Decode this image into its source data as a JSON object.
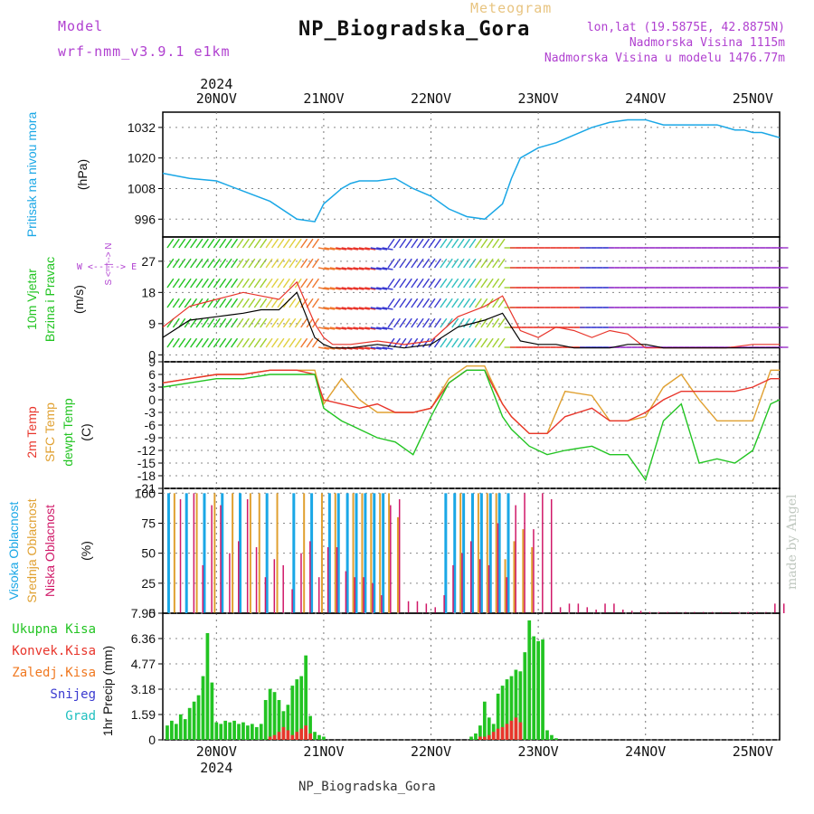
{
  "header": {
    "model_label": "Model",
    "model_name": "wrf-nmm_v3.9.1 e1km",
    "meteogram_label": "Meteogram",
    "station_title": "NP_Biogradska_Gora",
    "coords": "lon,lat (19.5875E, 42.8875N)",
    "altitude": "Nadmorska Visina 1115m",
    "model_altitude": "Nadmorska Visina u modelu 1476.77m",
    "footer_station": "NP_Biogradska_Gora",
    "credit": "made by Angel"
  },
  "colors": {
    "pressure": "#1aa7e6",
    "wind_speed": "#000000",
    "wind_gust": "#e8352b",
    "temp_2m": "#e8352b",
    "temp_sfc": "#e0a030",
    "dewpoint": "#22c422",
    "cloud_high": "#1aa7e6",
    "cloud_mid": "#e0a030",
    "cloud_low": "#d01868",
    "precip_total": "#22c422",
    "precip_conv": "#e8352b",
    "precip_frozen": "#f07820",
    "snow": "#3a3ad0",
    "hail": "#20c0c0",
    "axis_purple": "#b040d0"
  },
  "chart_data": [
    {
      "type": "line",
      "panel": "pressure",
      "ylabel_1": "Pritisak na nivou mora",
      "ylabel_2": "(hPa)",
      "yticks": [
        996,
        1008,
        1020,
        1032
      ],
      "ylim": [
        989,
        1038
      ],
      "x_hours": [
        0,
        6,
        12,
        18,
        24,
        30,
        34,
        36,
        38,
        40,
        42,
        44,
        48,
        52,
        54,
        56,
        60,
        64,
        68,
        72,
        76,
        78,
        80,
        84,
        88,
        92,
        96,
        100,
        104,
        108,
        112,
        116,
        120,
        124,
        126,
        128,
        130,
        132,
        134,
        136,
        138
      ],
      "values": [
        1014,
        1012,
        1011,
        1007,
        1003,
        996,
        995,
        1002,
        1005,
        1008,
        1010,
        1011,
        1011,
        1012,
        1010,
        1008,
        1005,
        1000,
        997,
        996,
        1002,
        1012,
        1020,
        1024,
        1026,
        1029,
        1032,
        1034,
        1035,
        1035,
        1033,
        1033,
        1033,
        1033,
        1032,
        1031,
        1031,
        1030,
        1030,
        1029,
        1028
      ]
    },
    {
      "type": "line",
      "panel": "wind",
      "ylabel_1": "10m Vjetar",
      "ylabel_2": "Brzina i Pravac",
      "ylabel_3": "(m/s)",
      "direction_legend": "W <--|--> E",
      "direction_legend_v": "S <--|--> N",
      "yticks": [
        0,
        9,
        18,
        27
      ],
      "ylim": [
        -2,
        34
      ],
      "x_hours": [
        0,
        6,
        12,
        18,
        22,
        26,
        30,
        34,
        36,
        38,
        42,
        48,
        54,
        60,
        66,
        72,
        76,
        80,
        84,
        88,
        92,
        96,
        100,
        104,
        108,
        112,
        116,
        120,
        126,
        132,
        138
      ],
      "series": [
        {
          "name": "speed",
          "values": [
            5,
            10,
            11,
            12,
            13,
            13,
            18,
            5,
            3,
            2,
            2,
            3,
            2,
            3,
            8,
            10,
            12,
            4,
            3,
            3,
            2,
            2,
            2,
            3,
            3,
            2,
            2,
            2,
            2,
            2,
            2
          ]
        },
        {
          "name": "gust",
          "values": [
            8,
            14,
            16,
            18,
            17,
            16,
            21,
            9,
            5,
            3,
            3,
            4,
            3,
            4,
            11,
            14,
            17,
            7,
            5,
            8,
            7,
            5,
            7,
            6,
            2,
            2,
            2,
            2,
            2,
            3,
            3
          ]
        }
      ],
      "barb_colors": [
        "#22c422",
        "#22c422",
        "#a0d030",
        "#e0d040",
        "#f07830",
        "#e8352b",
        "#3a3ad0",
        "#3a3ad0",
        "#30c0c0",
        "#a0d030",
        "#e8352b",
        "#e8352b",
        "#3a3ad0",
        "#9a30c8",
        "#9a30c8",
        "#9a30c8",
        "#9a30c8",
        "#9a30c8"
      ]
    },
    {
      "type": "line",
      "panel": "temperature",
      "ylabel_1": "2m Temp",
      "ylabel_2": "SFC Temp",
      "ylabel_3": "dewpt Temp",
      "ylabel_4": "(C)",
      "yticks": [
        -21,
        -18,
        -15,
        -12,
        -9,
        -6,
        -3,
        0,
        3,
        6,
        9
      ],
      "ylim": [
        -21,
        9
      ],
      "x_hours": [
        0,
        6,
        12,
        18,
        24,
        30,
        34,
        36,
        40,
        44,
        48,
        52,
        56,
        60,
        64,
        68,
        72,
        76,
        78,
        82,
        86,
        90,
        96,
        100,
        104,
        108,
        112,
        116,
        120,
        124,
        128,
        132,
        136,
        138
      ],
      "series": [
        {
          "name": "2m",
          "values": [
            4,
            5,
            6,
            6,
            7,
            7,
            6,
            0,
            -1,
            -2,
            -1,
            -3,
            -3,
            -2,
            4,
            7,
            7,
            -1,
            -4,
            -8,
            -8,
            -4,
            -2,
            -5,
            -5,
            -3,
            0,
            2,
            2,
            2,
            2,
            3,
            5,
            5
          ]
        },
        {
          "name": "sfc",
          "values": [
            4,
            5,
            6,
            6,
            7,
            7,
            7,
            -1,
            5,
            0,
            -3,
            -3,
            -3,
            -2,
            5,
            8,
            8,
            -1,
            -4,
            -8,
            -8,
            2,
            1,
            -5,
            -5,
            -4,
            3,
            6,
            0,
            -5,
            -5,
            -5,
            7,
            7
          ]
        },
        {
          "name": "dewpt",
          "values": [
            3,
            4,
            5,
            5,
            6,
            6,
            6,
            -2,
            -5,
            -7,
            -9,
            -10,
            -13,
            -4,
            4,
            7,
            7,
            -4,
            -7,
            -11,
            -13,
            -12,
            -11,
            -13,
            -13,
            -19,
            -5,
            -1,
            -15,
            -14,
            -15,
            -12,
            -1,
            0
          ]
        }
      ]
    },
    {
      "type": "bar",
      "panel": "clouds",
      "ylabel_1": "Visoka Oblacnost",
      "ylabel_2": "Srednja Oblacnost",
      "ylabel_3": "Niska Oblacnost",
      "ylabel_4": "(%)",
      "yticks": [
        0,
        25,
        50,
        75,
        100
      ],
      "ylim": [
        0,
        100
      ],
      "series": [
        {
          "name": "high",
          "x_hours": [
            1,
            5,
            9,
            13,
            17,
            23,
            29,
            33,
            37,
            39,
            41,
            43,
            45,
            47,
            49,
            63,
            65,
            67,
            69,
            71,
            73,
            75,
            77
          ],
          "values": [
            100,
            100,
            100,
            100,
            100,
            100,
            100,
            100,
            100,
            100,
            100,
            100,
            100,
            100,
            100,
            100,
            100,
            100,
            100,
            100,
            100,
            100,
            100
          ]
        },
        {
          "name": "mid",
          "x_hours": [
            2,
            7,
            11,
            15,
            19,
            21,
            25,
            31,
            35,
            38,
            42,
            44,
            46,
            48,
            50,
            52,
            66,
            70,
            72,
            74,
            76,
            78,
            80,
            82
          ],
          "values": [
            100,
            100,
            100,
            100,
            100,
            100,
            100,
            100,
            100,
            100,
            100,
            100,
            100,
            100,
            100,
            80,
            100,
            100,
            100,
            100,
            45,
            60,
            70,
            55
          ]
        },
        {
          "name": "low",
          "x_hours": [
            3,
            6,
            8,
            10,
            12,
            14,
            16,
            18,
            20,
            22,
            24,
            26,
            28,
            30,
            32,
            34,
            36,
            38,
            40,
            42,
            44,
            46,
            48,
            50,
            52,
            54,
            56,
            58,
            60,
            62,
            64,
            66,
            68,
            70,
            72,
            74,
            76,
            78,
            80,
            82,
            84,
            86,
            88,
            90,
            92,
            94,
            96,
            98,
            100,
            102,
            104,
            106,
            108,
            110,
            112,
            114,
            116,
            118,
            120,
            122,
            124,
            126,
            128,
            130,
            132,
            134,
            136,
            138
          ],
          "values": [
            95,
            100,
            40,
            90,
            90,
            50,
            60,
            95,
            55,
            30,
            45,
            40,
            20,
            50,
            60,
            30,
            55,
            55,
            35,
            30,
            30,
            25,
            15,
            90,
            95,
            10,
            10,
            8,
            5,
            15,
            40,
            50,
            60,
            45,
            40,
            75,
            30,
            90,
            100,
            70,
            100,
            95,
            5,
            8,
            8,
            5,
            3,
            8,
            8,
            3,
            2,
            2,
            1,
            1,
            1,
            1,
            1,
            1,
            1,
            1,
            1,
            1,
            1,
            1,
            1,
            1,
            8,
            8
          ]
        }
      ]
    },
    {
      "type": "bar",
      "panel": "precipitation",
      "ylabel_1": "1hr Precip (mm)",
      "legend": [
        "Ukupna Kisa",
        "Konvek.Kisa",
        "Zaledj.Kisa",
        "Snijeg",
        "Grad"
      ],
      "yticks": [
        0,
        1.59,
        3.18,
        4.77,
        6.36,
        7.95
      ],
      "ylim": [
        0,
        7.95
      ],
      "x_hours": [
        1,
        2,
        3,
        4,
        5,
        6,
        7,
        8,
        9,
        10,
        11,
        12,
        13,
        14,
        15,
        16,
        17,
        18,
        19,
        20,
        21,
        22,
        23,
        24,
        25,
        26,
        27,
        28,
        29,
        30,
        31,
        32,
        33,
        34,
        35,
        36,
        37,
        38,
        39,
        40,
        41,
        42,
        43,
        44,
        45,
        46,
        47,
        48,
        49,
        50,
        51,
        52,
        53,
        54,
        55,
        56,
        57,
        58,
        59,
        60,
        61,
        62,
        63,
        64,
        65,
        66,
        67,
        68,
        69,
        70,
        71,
        72,
        73,
        74,
        75,
        76,
        77,
        78,
        79,
        80
      ],
      "series": [
        {
          "name": "total",
          "values": [
            0.9,
            1.2,
            1.0,
            1.6,
            1.3,
            2.0,
            2.4,
            2.8,
            4.0,
            6.7,
            3.6,
            1.1,
            1.0,
            1.2,
            1.1,
            1.2,
            1.0,
            1.1,
            0.9,
            1.0,
            0.8,
            1.0,
            2.5,
            3.2,
            3.0,
            2.5,
            1.8,
            2.2,
            3.4,
            3.8,
            4.0,
            5.3,
            1.5,
            0.5,
            0.3,
            0.2,
            0,
            0,
            0,
            0,
            0,
            0,
            0,
            0,
            0,
            0,
            0,
            0,
            0,
            0,
            0,
            0,
            0,
            0,
            0,
            0,
            0,
            0,
            0,
            0,
            0,
            0,
            0,
            0,
            0,
            0,
            0,
            0,
            0.2,
            0.4,
            0.9,
            2.4,
            1.4,
            1.0,
            2.9,
            3.4,
            3.8,
            4.0,
            4.4,
            4.3
          ]
        },
        {
          "name": "conv",
          "values": [
            0,
            0,
            0,
            0,
            0,
            0,
            0,
            0,
            0,
            0,
            0,
            0,
            0,
            0,
            0,
            0,
            0,
            0,
            0,
            0,
            0,
            0,
            0,
            0.2,
            0.3,
            0.5,
            0.8,
            0.6,
            0.3,
            0.5,
            0.7,
            0.9,
            0.4,
            0,
            0,
            0,
            0,
            0,
            0,
            0,
            0,
            0,
            0,
            0,
            0,
            0,
            0,
            0,
            0,
            0,
            0,
            0,
            0,
            0,
            0,
            0,
            0,
            0,
            0,
            0,
            0,
            0,
            0,
            0,
            0,
            0,
            0,
            0,
            0,
            0,
            0.2,
            0.2,
            0.3,
            0.5,
            0.7,
            0.8,
            1.0,
            1.2,
            1.4,
            1.1
          ]
        }
      ],
      "extra_hours": [
        81,
        82,
        83,
        84,
        85,
        86,
        87,
        88
      ],
      "extra_total": [
        5.5,
        7.5,
        6.5,
        6.2,
        6.3,
        0.6,
        0.3,
        0.1
      ]
    }
  ],
  "x_axis": {
    "start_year": "2024",
    "day_labels": [
      "20NOV",
      "21NOV",
      "22NOV",
      "23NOV",
      "24NOV",
      "25NOV"
    ],
    "start_offset_hours": 12,
    "total_hours": 138
  }
}
